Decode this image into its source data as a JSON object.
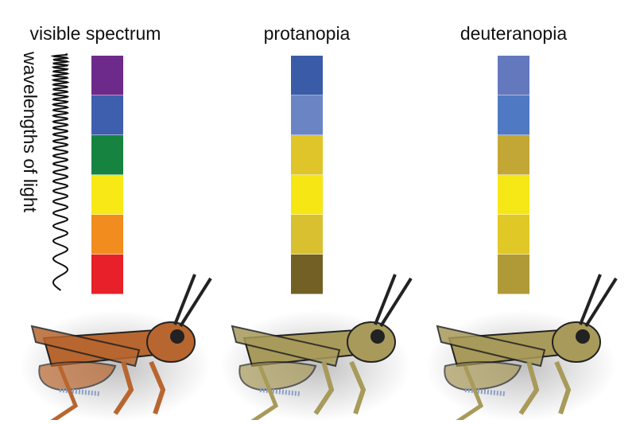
{
  "axis_label": "wavelengths of light",
  "columns": [
    {
      "title": "visible spectrum",
      "swatches": [
        "#6e2a8a",
        "#3e5fad",
        "#168440",
        "#f7e816",
        "#f28c1e",
        "#e8202a"
      ]
    },
    {
      "title": "protanopia",
      "swatches": [
        "#3a5ca8",
        "#6b84c4",
        "#e0c52a",
        "#f6e614",
        "#d8c030",
        "#736024"
      ]
    },
    {
      "title": "deuteranopia",
      "swatches": [
        "#6378bd",
        "#4f79c2",
        "#c3a736",
        "#f6e716",
        "#e0c826",
        "#b09a38"
      ]
    }
  ]
}
